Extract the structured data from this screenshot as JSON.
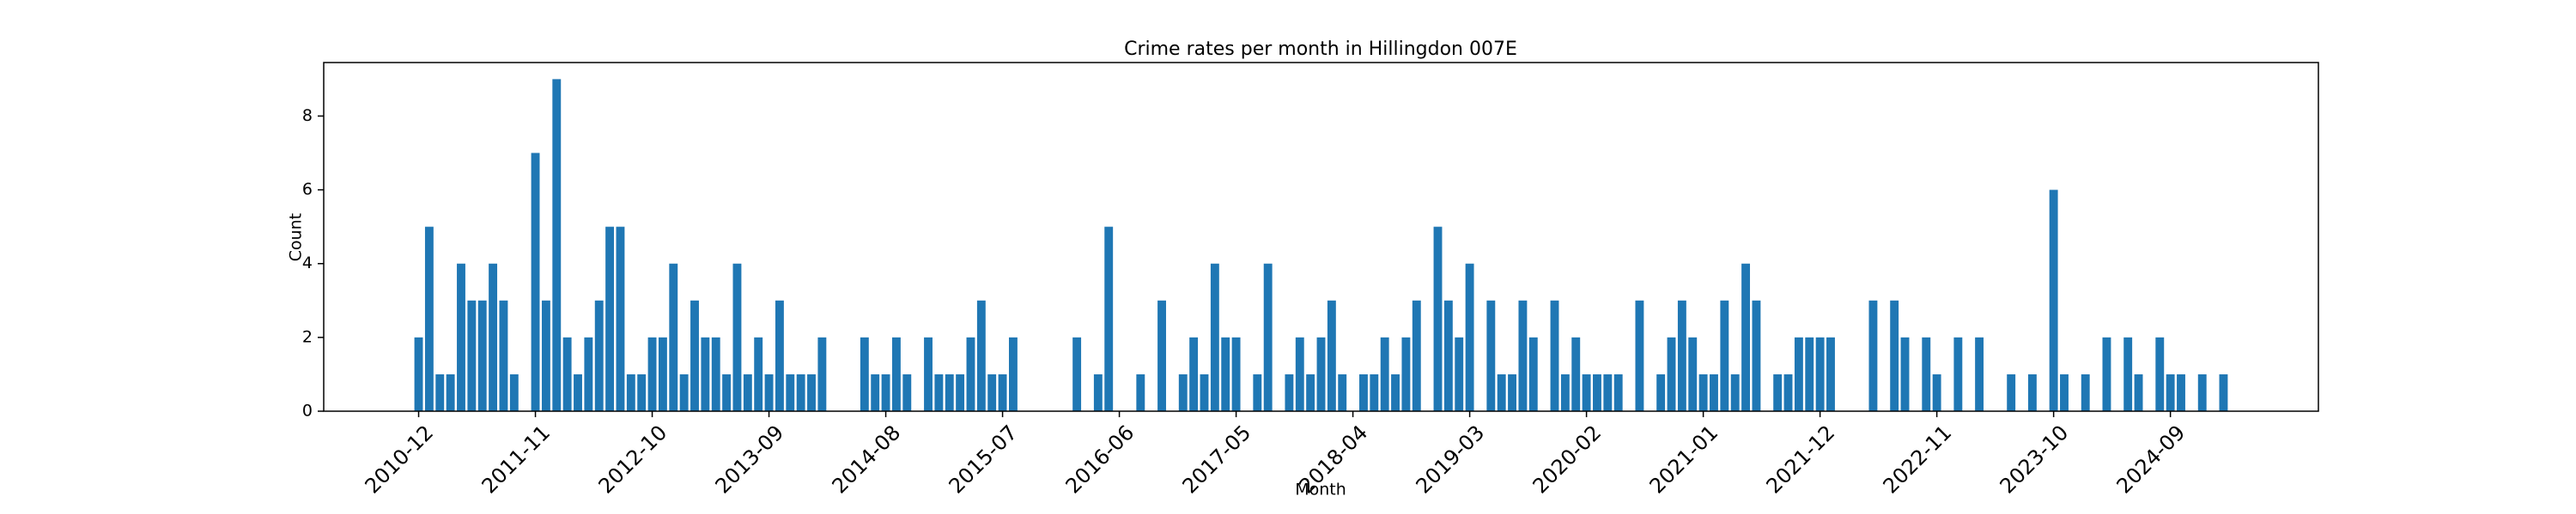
{
  "chart_data": {
    "type": "bar",
    "title": "Crime rates per month in Hillingdon 007E",
    "x_label": "Month",
    "y_label": "Count",
    "color": "#1f77b4",
    "categories": [
      "2010-12",
      null,
      null,
      null,
      null,
      null,
      null,
      null,
      null,
      null,
      null,
      "2011-11",
      null,
      null,
      null,
      null,
      null,
      null,
      null,
      null,
      null,
      null,
      "2012-10",
      null,
      null,
      null,
      null,
      null,
      null,
      null,
      null,
      null,
      null,
      "2013-09",
      null,
      null,
      null,
      null,
      null,
      null,
      null,
      null,
      null,
      null,
      "2014-08",
      null,
      null,
      null,
      null,
      null,
      null,
      null,
      null,
      null,
      null,
      "2015-07",
      null,
      null,
      null,
      null,
      null,
      null,
      null,
      null,
      null,
      null,
      "2016-06",
      null,
      null,
      null,
      null,
      null,
      null,
      null,
      null,
      null,
      null,
      "2017-05",
      null,
      null,
      null,
      null,
      null,
      null,
      null,
      null,
      null,
      null,
      "2018-04",
      null,
      null,
      null,
      null,
      null,
      null,
      null,
      null,
      null,
      null,
      "2019-03",
      null,
      null,
      null,
      null,
      null,
      null,
      null,
      null,
      null,
      null,
      "2020-02",
      null,
      null,
      null,
      null,
      null,
      null,
      null,
      null,
      null,
      null,
      "2021-01",
      null,
      null,
      null,
      null,
      null,
      null,
      null,
      null,
      null,
      null,
      "2021-12",
      null,
      null,
      null,
      null,
      null,
      null,
      null,
      null,
      null,
      null,
      "2022-11",
      null,
      null,
      null,
      null,
      null,
      null,
      null,
      null,
      null,
      null,
      "2023-10",
      null,
      null,
      null,
      null,
      null,
      null,
      null,
      null,
      null,
      null,
      "2024-09",
      null,
      null,
      null,
      null,
      null
    ],
    "values": [
      2,
      5,
      1,
      1,
      4,
      3,
      3,
      4,
      3,
      1,
      0,
      7,
      3,
      9,
      2,
      1,
      2,
      3,
      5,
      5,
      1,
      1,
      2,
      2,
      4,
      1,
      3,
      2,
      2,
      1,
      4,
      1,
      2,
      1,
      3,
      1,
      1,
      1,
      2,
      0,
      0,
      0,
      2,
      1,
      1,
      2,
      1,
      0,
      2,
      1,
      1,
      1,
      2,
      3,
      1,
      1,
      2,
      0,
      0,
      0,
      0,
      0,
      2,
      0,
      1,
      5,
      0,
      0,
      1,
      0,
      3,
      0,
      1,
      2,
      1,
      4,
      2,
      2,
      0,
      1,
      4,
      0,
      1,
      2,
      1,
      2,
      3,
      1,
      0,
      1,
      1,
      2,
      1,
      2,
      3,
      0,
      5,
      3,
      2,
      4,
      0,
      3,
      1,
      1,
      3,
      2,
      0,
      3,
      1,
      2,
      1,
      1,
      1,
      1,
      0,
      3,
      0,
      1,
      2,
      3,
      2,
      1,
      1,
      3,
      1,
      4,
      3,
      0,
      1,
      1,
      2,
      2,
      2,
      2,
      0,
      0,
      0,
      3,
      0,
      3,
      2,
      0,
      2,
      1,
      0,
      2,
      0,
      2,
      0,
      0,
      1,
      0,
      1,
      0,
      6,
      1,
      0,
      1,
      0,
      2,
      0,
      2,
      1,
      0,
      2,
      1,
      1,
      0,
      1,
      0,
      1
    ],
    "ylim": [
      0,
      9.45
    ],
    "yticks": [
      0,
      2,
      4,
      6,
      8
    ],
    "grid": false
  }
}
